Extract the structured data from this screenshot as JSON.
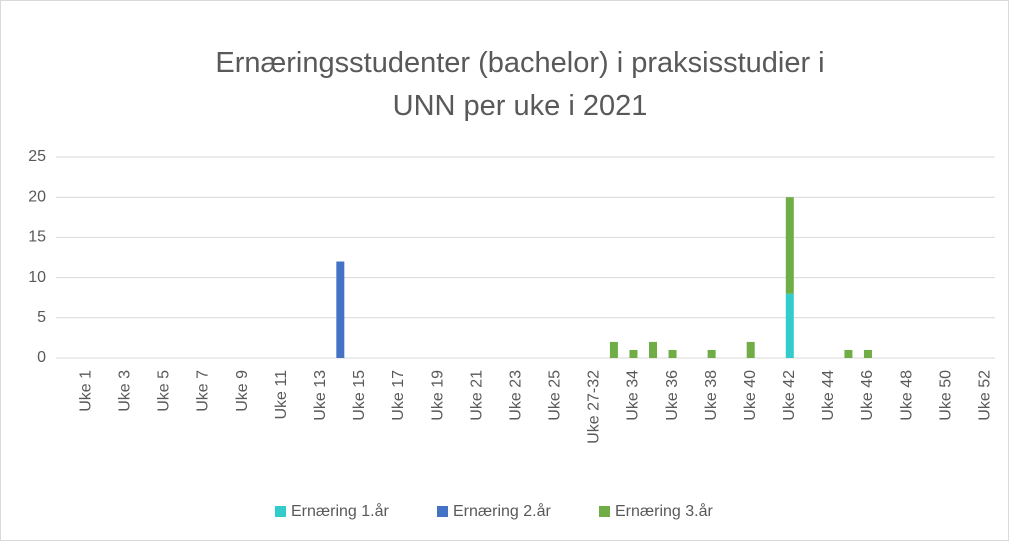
{
  "chart_data": {
    "type": "stacked_bar",
    "title": [
      "Ernæringsstudenter (bachelor) i praksisstudier i",
      "UNN per uke i 2021"
    ],
    "categories": [
      "Uke 1",
      null,
      "Uke 3",
      null,
      "Uke 5",
      null,
      "Uke 7",
      null,
      "Uke 9",
      null,
      "Uke 11",
      null,
      "Uke 13",
      null,
      "Uke 15",
      null,
      "Uke 17",
      null,
      "Uke 19",
      null,
      "Uke 21",
      null,
      "Uke 23",
      null,
      "Uke 25",
      null,
      "Uke 27-32",
      null,
      "Uke 34",
      null,
      "Uke 36",
      null,
      "Uke 38",
      null,
      "Uke 40",
      null,
      "Uke 42",
      null,
      "Uke 44",
      null,
      "Uke 46",
      null,
      "Uke 48",
      null,
      "Uke 50",
      null,
      "Uke 52"
    ],
    "series": [
      {
        "name": "Ernæring 1.år",
        "color": "#33cccc",
        "values": [
          0,
          0,
          0,
          0,
          0,
          0,
          0,
          0,
          0,
          0,
          0,
          0,
          0,
          0,
          0,
          0,
          0,
          0,
          0,
          0,
          0,
          0,
          0,
          0,
          0,
          0,
          0,
          0,
          0,
          0,
          0,
          0,
          0,
          0,
          0,
          0,
          8,
          0,
          0,
          0,
          0,
          0,
          0,
          0,
          0,
          0,
          0
        ]
      },
      {
        "name": "Ernæring 2.år",
        "color": "#4472c4",
        "values": [
          0,
          0,
          0,
          0,
          0,
          0,
          0,
          0,
          0,
          0,
          0,
          0,
          0,
          12,
          0,
          0,
          0,
          0,
          0,
          0,
          0,
          0,
          0,
          0,
          0,
          0,
          0,
          0,
          0,
          0,
          0,
          0,
          0,
          0,
          0,
          0,
          0,
          0,
          0,
          0,
          0,
          0,
          0,
          0,
          0,
          0,
          0
        ]
      },
      {
        "name": "Ernæring 3.år",
        "color": "#70ad47",
        "values": [
          0,
          0,
          0,
          0,
          0,
          0,
          0,
          0,
          0,
          0,
          0,
          0,
          0,
          0,
          0,
          0,
          0,
          0,
          0,
          0,
          0,
          0,
          0,
          0,
          0,
          0,
          0,
          2,
          1,
          2,
          1,
          0,
          1,
          0,
          2,
          0,
          12,
          0,
          0,
          1,
          1,
          0,
          0,
          0,
          0,
          0,
          0
        ]
      }
    ],
    "ylim": [
      0,
      25
    ],
    "yticks": [
      0,
      5,
      10,
      15,
      20,
      25
    ],
    "grid": true,
    "legend": "bottom"
  }
}
